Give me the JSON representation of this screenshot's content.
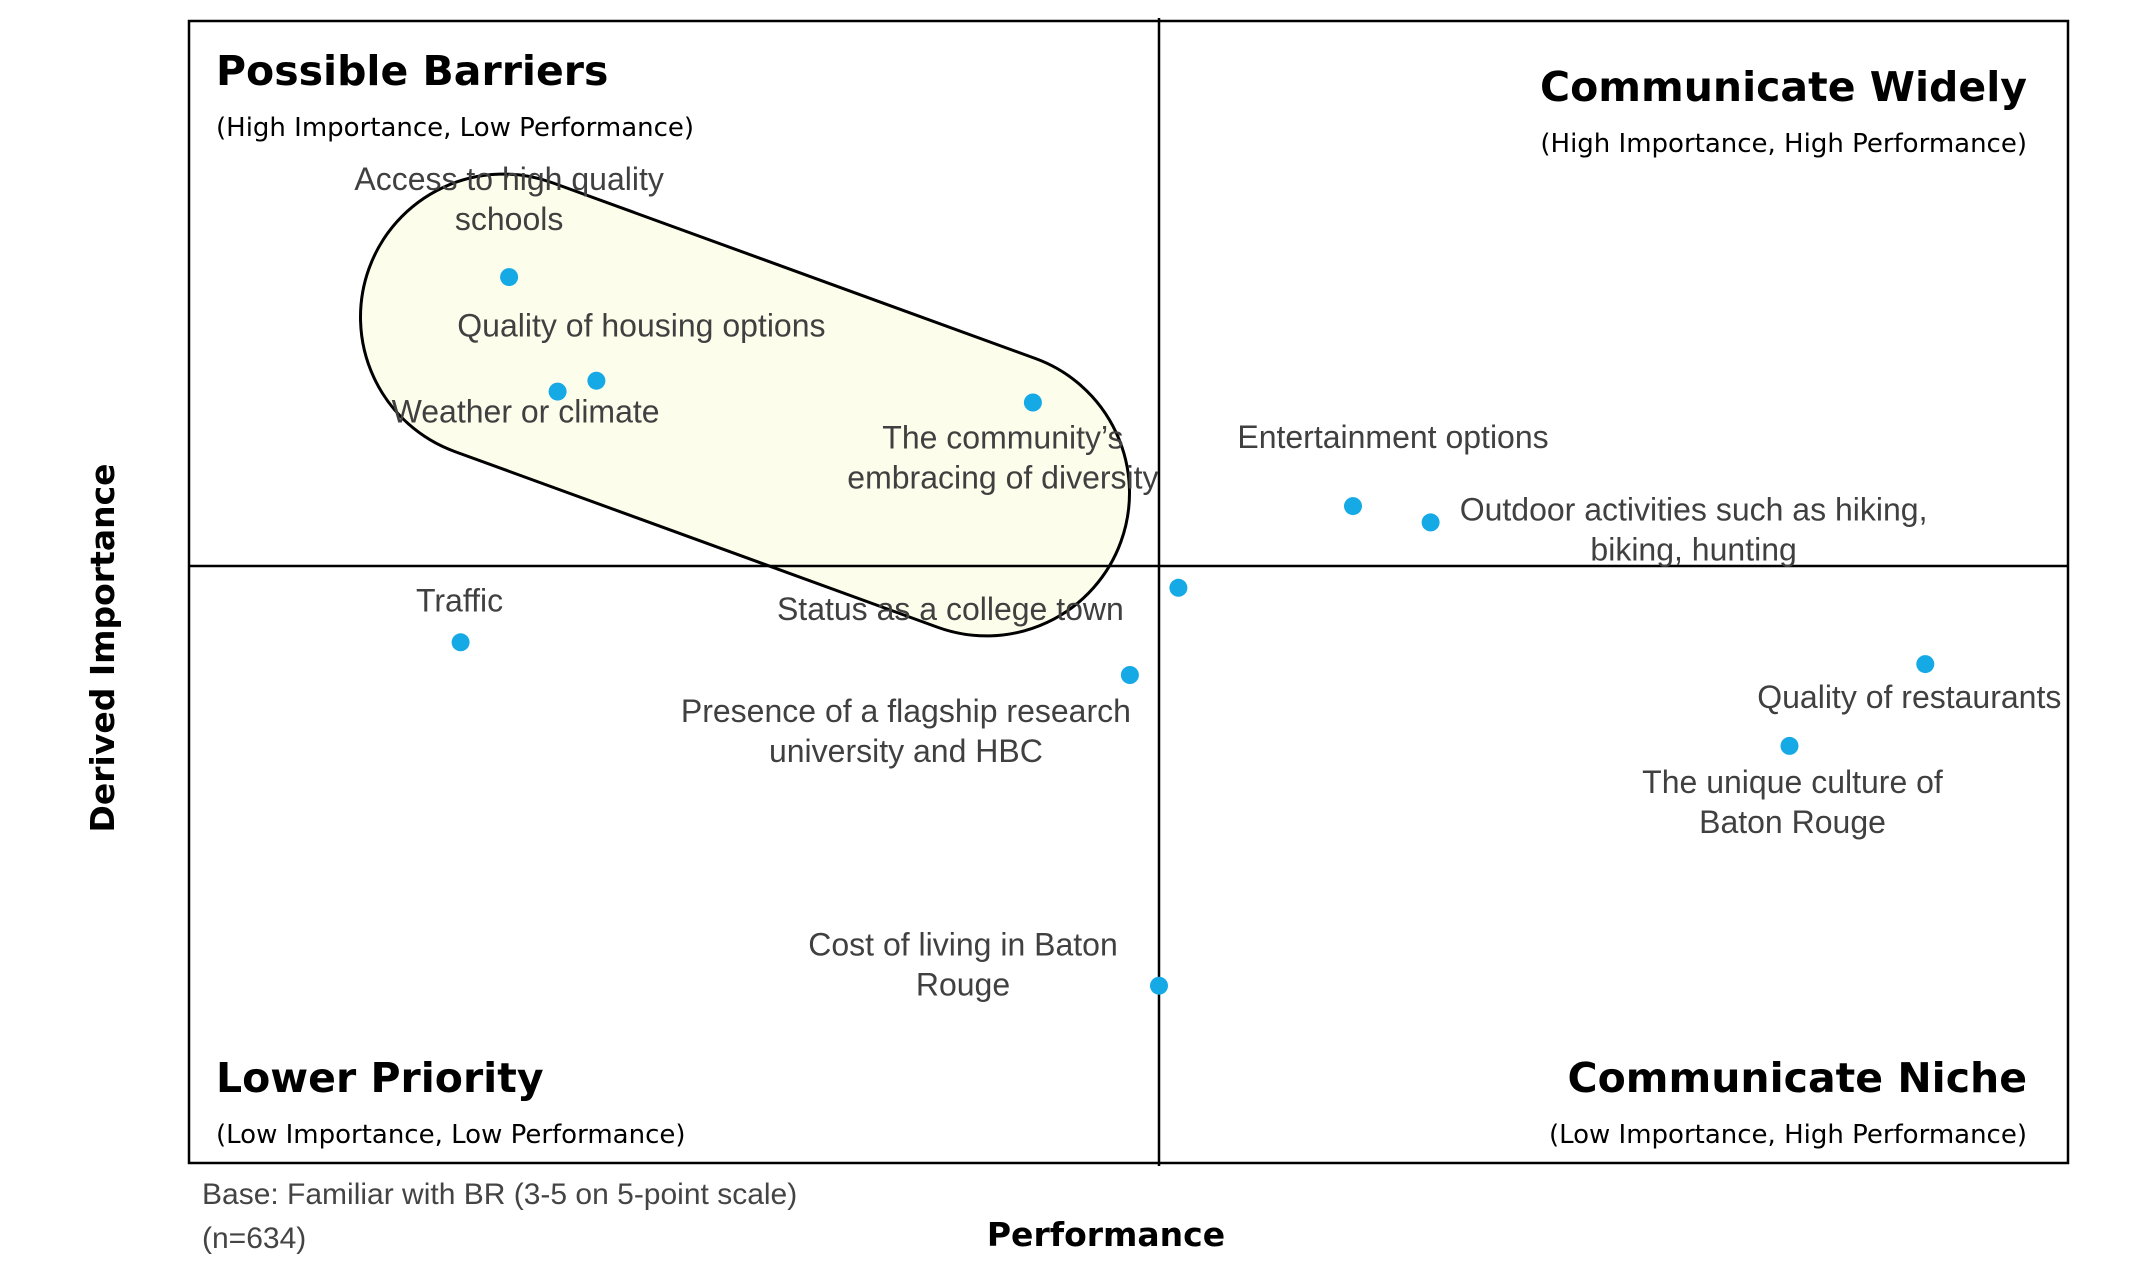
{
  "chart_data": {
    "type": "scatter",
    "title": "",
    "xlabel": "Performance",
    "ylabel": "Derived Importance",
    "xlim": [
      -1,
      1
    ],
    "ylim": [
      -1,
      1
    ],
    "grid": false,
    "quadrants": [
      {
        "name": "possible-barriers",
        "title": "Possible Barriers",
        "subtitle": "(High Importance, Low Performance)",
        "position": "top-left"
      },
      {
        "name": "communicate-widely",
        "title": "Communicate Widely",
        "subtitle": "(High Importance, High Performance)",
        "position": "top-right"
      },
      {
        "name": "lower-priority",
        "title": "Lower Priority",
        "subtitle": "(Low Importance, Low Performance)",
        "position": "bottom-left"
      },
      {
        "name": "communicate-niche",
        "title": "Communicate Niche",
        "subtitle": "(Low Importance, High Performance)",
        "position": "bottom-right"
      }
    ],
    "points": [
      {
        "label": "Access to high quality schools",
        "label_lines": [
          "Access to high quality",
          "schools"
        ],
        "x": -0.67,
        "y": 0.53
      },
      {
        "label": "Quality of housing options",
        "label_lines": [
          "Quality of housing options"
        ],
        "x": -0.58,
        "y": 0.34
      },
      {
        "label": "Weather or climate",
        "label_lines": [
          "Weather or climate"
        ],
        "x": -0.62,
        "y": 0.32
      },
      {
        "label": "The community’s embracing of diversity",
        "label_lines": [
          "The community’s",
          "embracing of diversity"
        ],
        "x": -0.13,
        "y": 0.3
      },
      {
        "label": "Entertainment options",
        "label_lines": [
          "Entertainment options"
        ],
        "x": 0.2,
        "y": 0.11
      },
      {
        "label": "Outdoor activities such as hiking, biking, hunting",
        "label_lines": [
          "Outdoor activities such as hiking,",
          "biking, hunting"
        ],
        "x": 0.28,
        "y": 0.08
      },
      {
        "label": "Traffic",
        "label_lines": [
          "Traffic"
        ],
        "x": -0.72,
        "y": -0.14
      },
      {
        "label": "Status as a college town",
        "label_lines": [
          "Status as a college town"
        ],
        "x": 0.02,
        "y": -0.04
      },
      {
        "label": "Presence of a flagship research university and HBC",
        "label_lines": [
          "Presence of a flagship research",
          "university and HBC"
        ],
        "x": -0.03,
        "y": -0.2
      },
      {
        "label": "Quality of restaurants",
        "label_lines": [
          "Quality of restaurants"
        ],
        "x": 0.79,
        "y": -0.18
      },
      {
        "label": "The unique culture of Baton Rouge",
        "label_lines": [
          "The unique culture of",
          "Baton Rouge"
        ],
        "x": 0.65,
        "y": -0.33
      },
      {
        "label": "Cost of living in Baton Rouge",
        "label_lines": [
          "Cost of living in Baton",
          "Rouge"
        ],
        "x": 0.0,
        "y": -0.77
      }
    ],
    "highlighted_group": [
      "Access to high quality schools",
      "Quality of housing options",
      "Weather or climate",
      "The community’s embracing of diversity"
    ],
    "point_color": "#15a9e6",
    "highlight_fill": "#fdfdec"
  },
  "notes": {
    "base_line": "Base: Familiar with BR (3-5 on 5-point scale)",
    "n_line": "(n=634)"
  }
}
